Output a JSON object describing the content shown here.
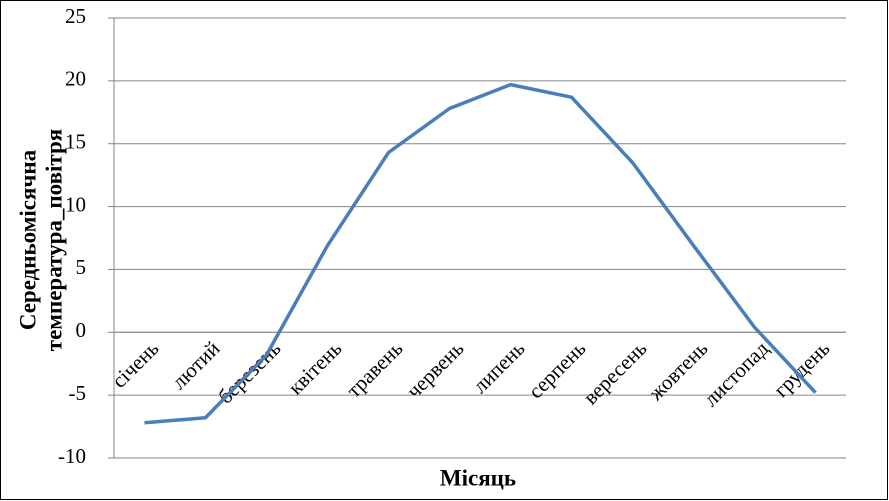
{
  "chart_data": {
    "type": "line",
    "y_label": [
      "Середньомісячна",
      "температура_повітря"
    ],
    "x_label": "Місяць",
    "categories": [
      "січень",
      "лютий",
      "березень",
      "квітень",
      "травень",
      "червень",
      "липень",
      "серпень",
      "вересень",
      "жовтень",
      "листопад",
      "грудень"
    ],
    "series": [
      {
        "name": "Середньомісячна температура повітря",
        "color": "#4a7ebb",
        "values": [
          -7.2,
          -6.8,
          -1.8,
          6.9,
          14.3,
          17.8,
          19.7,
          18.7,
          13.5,
          6.9,
          0.4,
          -4.8
        ]
      }
    ],
    "ylim": [
      -10,
      25
    ],
    "yticks": [
      -10,
      -5,
      0,
      5,
      10,
      15,
      20,
      25
    ],
    "grid": true,
    "legend": false
  }
}
